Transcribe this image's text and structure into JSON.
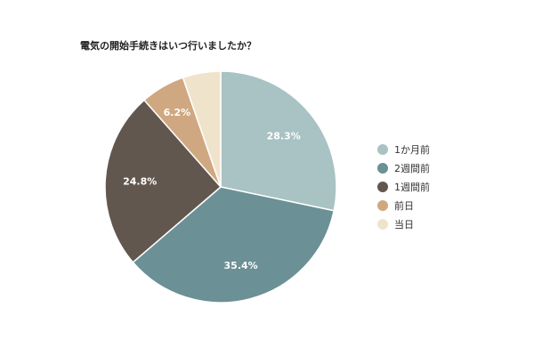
{
  "chart_data": {
    "type": "pie",
    "title": "電気の開始手続きはいつ行いましたか？",
    "categories": [
      "1か月前",
      "2週間前",
      "1週間前",
      "前日",
      "当日"
    ],
    "values": [
      28.3,
      35.4,
      24.8,
      6.2,
      5.3
    ],
    "data_labels": [
      "28.3%",
      "35.4%",
      "24.8%",
      "6.2%",
      ""
    ],
    "colors": [
      "#a9c2c3",
      "#6b9095",
      "#62574f",
      "#cfa882",
      "#f0e3cb"
    ],
    "start_angle_deg": 0,
    "direction": "clockwise",
    "legend_position": "right"
  }
}
